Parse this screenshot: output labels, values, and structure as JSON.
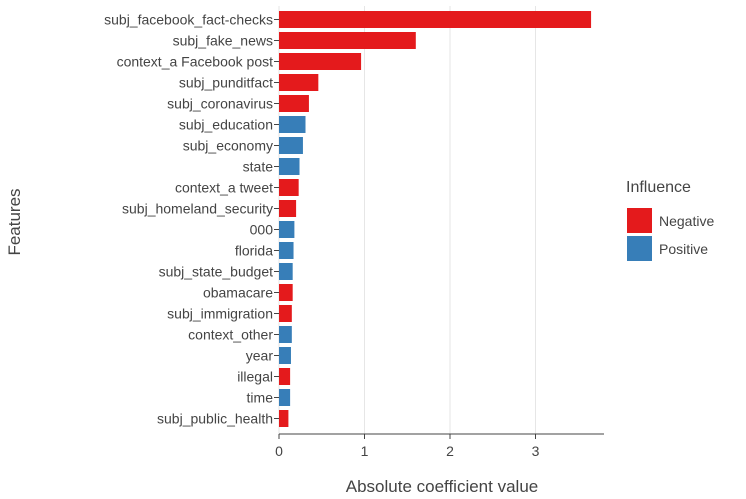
{
  "chart_data": {
    "type": "bar",
    "orientation": "horizontal",
    "xlabel": "Absolute coefficient value",
    "ylabel": "Features",
    "xlim": [
      0,
      3.8
    ],
    "xticks": [
      0,
      1,
      2,
      3
    ],
    "grid": "vertical",
    "legend": {
      "title": "Influence",
      "placement": "right",
      "entries": [
        {
          "label": "Negative",
          "color": "#e41a1c"
        },
        {
          "label": "Positive",
          "color": "#377eb8"
        }
      ]
    },
    "categories": [
      "subj_facebook_fact-checks",
      "subj_fake_news",
      "context_a Facebook post",
      "subj_punditfact",
      "subj_coronavirus",
      "subj_education",
      "subj_economy",
      "state",
      "context_a tweet",
      "subj_homeland_security",
      "000",
      "florida",
      "subj_state_budget",
      "obamacare",
      "subj_immigration",
      "context_other",
      "year",
      "illegal",
      "time",
      "subj_public_health"
    ],
    "values": [
      3.65,
      1.6,
      0.96,
      0.46,
      0.35,
      0.31,
      0.28,
      0.24,
      0.23,
      0.2,
      0.18,
      0.17,
      0.16,
      0.16,
      0.15,
      0.15,
      0.14,
      0.13,
      0.13,
      0.11
    ],
    "influence": [
      "Negative",
      "Negative",
      "Negative",
      "Negative",
      "Negative",
      "Positive",
      "Positive",
      "Positive",
      "Negative",
      "Negative",
      "Positive",
      "Positive",
      "Positive",
      "Negative",
      "Negative",
      "Positive",
      "Positive",
      "Negative",
      "Positive",
      "Negative"
    ]
  }
}
